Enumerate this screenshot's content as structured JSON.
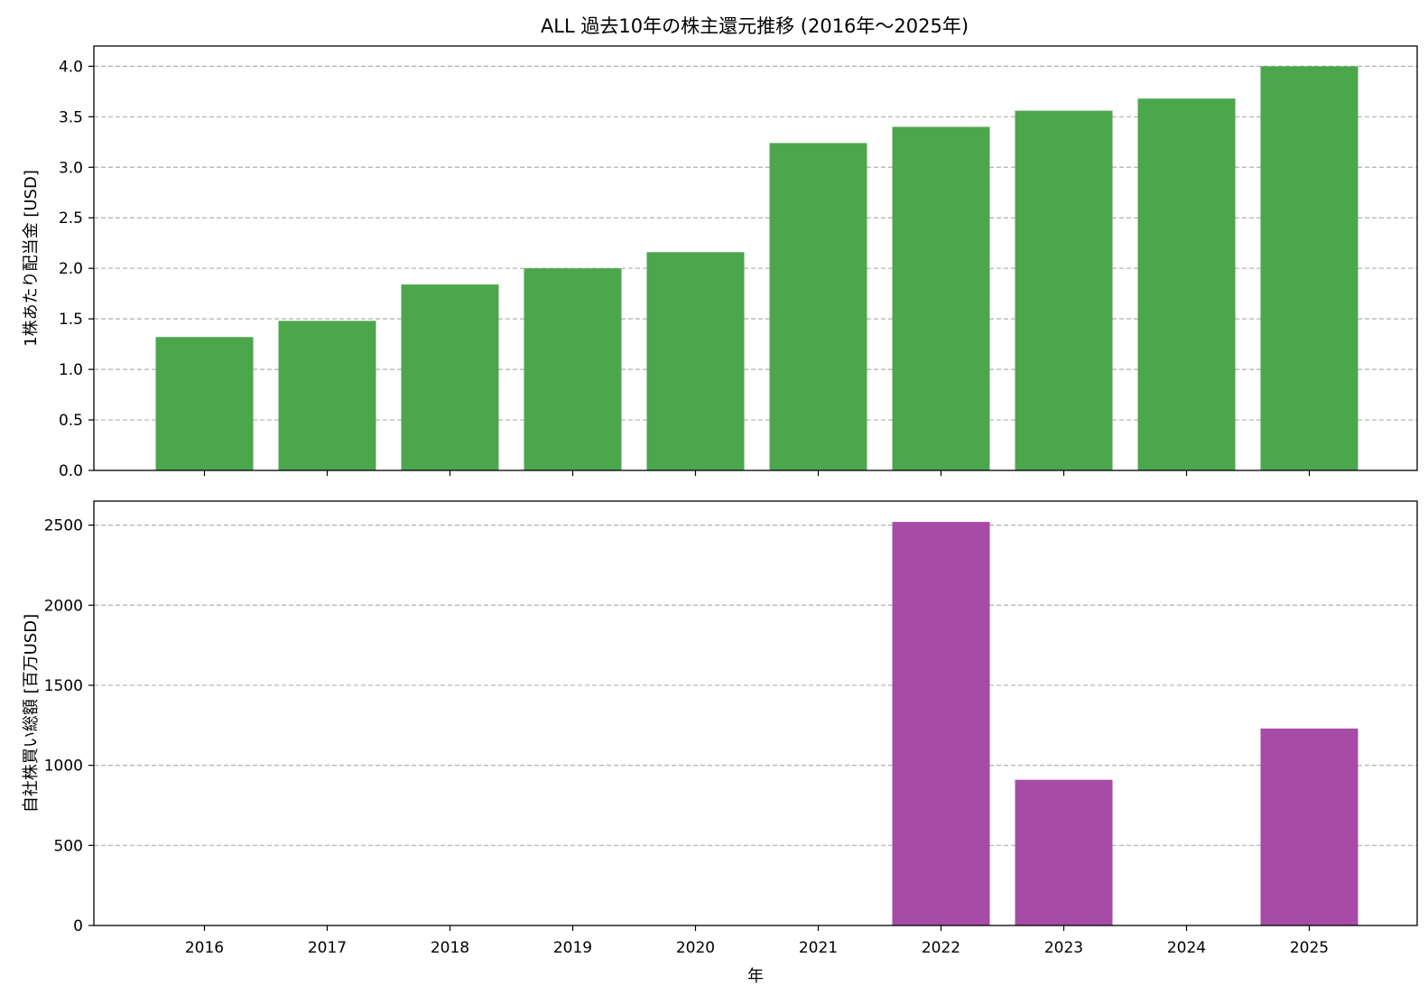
{
  "figure": {
    "title": "ALL 過去10年の株主還元推移 (2016年〜2025年)",
    "xlabel": "年"
  },
  "colors": {
    "dividend": "#4ca64c",
    "buyback": "#a64ca6",
    "grid": "#b0b0b0"
  },
  "chart_data": [
    {
      "type": "bar",
      "categories": [
        "2016",
        "2017",
        "2018",
        "2019",
        "2020",
        "2021",
        "2022",
        "2023",
        "2024",
        "2025"
      ],
      "values": [
        1.32,
        1.48,
        1.84,
        2.0,
        2.16,
        3.24,
        3.4,
        3.56,
        3.68,
        4.0
      ],
      "title": "",
      "xlabel": "",
      "ylabel": "1株あたり配当金 [USD]",
      "ylim": [
        0,
        4.2
      ],
      "yticks": [
        0.0,
        0.5,
        1.0,
        1.5,
        2.0,
        2.5,
        3.0,
        3.5,
        4.0
      ],
      "ytick_labels": [
        "0.0",
        "0.5",
        "1.0",
        "1.5",
        "2.0",
        "2.5",
        "3.0",
        "3.5",
        "4.0"
      ],
      "grid": "y-dashed"
    },
    {
      "type": "bar",
      "categories": [
        "2016",
        "2017",
        "2018",
        "2019",
        "2020",
        "2021",
        "2022",
        "2023",
        "2024",
        "2025"
      ],
      "values": [
        0,
        0,
        0,
        0,
        0,
        0,
        2520,
        910,
        0,
        1230
      ],
      "title": "",
      "xlabel": "年",
      "ylabel": "自社株買い総額 [百万USD]",
      "ylim": [
        0,
        2650
      ],
      "yticks": [
        0,
        500,
        1000,
        1500,
        2000,
        2500
      ],
      "ytick_labels": [
        "0",
        "500",
        "1000",
        "1500",
        "2000",
        "2500"
      ],
      "grid": "y-dashed"
    }
  ]
}
